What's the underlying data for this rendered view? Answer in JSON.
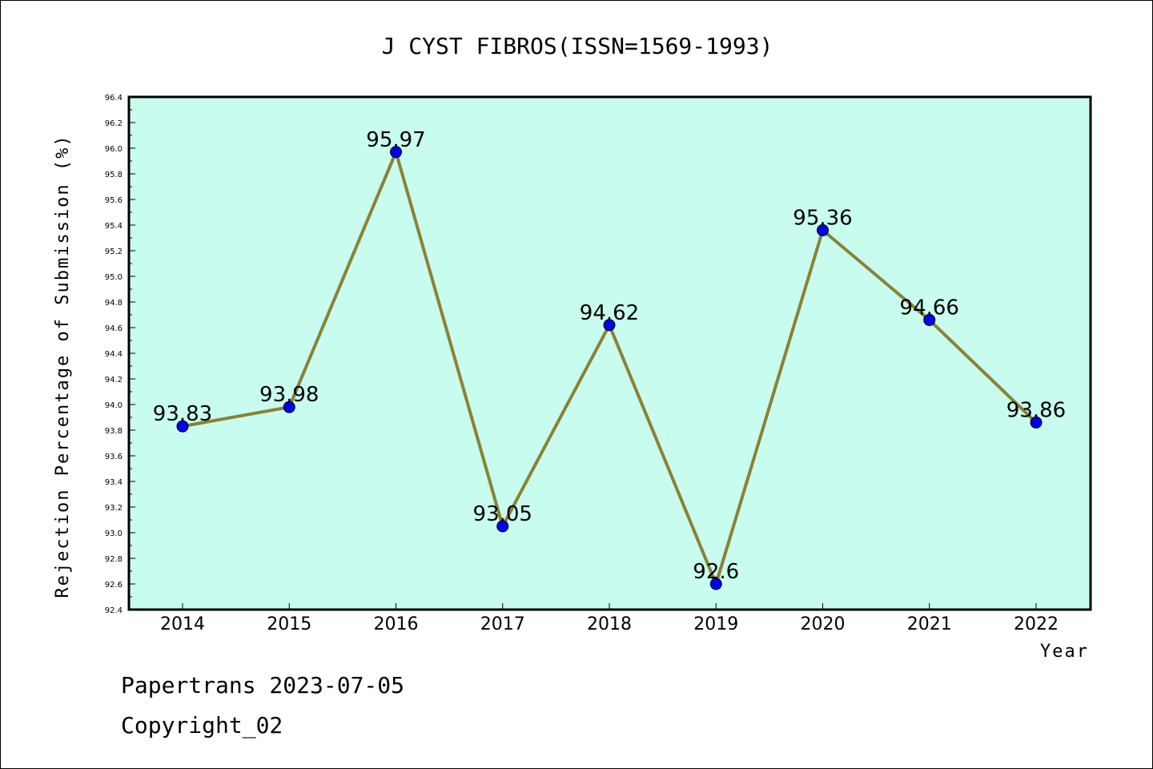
{
  "chart_data": {
    "type": "line",
    "title": "J CYST FIBROS(ISSN=1569-1993)",
    "xlabel": "Year",
    "ylabel": "Rejection Percentage of Submission (%)",
    "categories": [
      "2014",
      "2015",
      "2016",
      "2017",
      "2018",
      "2019",
      "2020",
      "2021",
      "2022"
    ],
    "series": [
      {
        "values": [
          93.83,
          93.98,
          95.97,
          93.05,
          94.62,
          92.6,
          95.36,
          94.66,
          93.86
        ],
        "labels": [
          "93.83",
          "93.98",
          "95.97",
          "93.05",
          "94.62",
          "92.6",
          "95.36",
          "94.66",
          "93.86"
        ]
      }
    ],
    "ylim": [
      92.4,
      96.4
    ],
    "yticks": [
      "92.4",
      "92.6",
      "92.8",
      "93.0",
      "93.2",
      "93.4",
      "93.6",
      "93.8",
      "94.0",
      "94.2",
      "94.4",
      "94.6",
      "94.8",
      "95.0",
      "95.2",
      "95.4",
      "95.6",
      "95.8",
      "96.0",
      "96.2",
      "96.4"
    ],
    "grid": false,
    "colors": {
      "plot_background": "#c8fcee",
      "line": "#8b8235",
      "marker": "#0000ee"
    }
  },
  "footer": {
    "line1": "Papertrans 2023-07-05",
    "line2": "Copyright_02"
  }
}
